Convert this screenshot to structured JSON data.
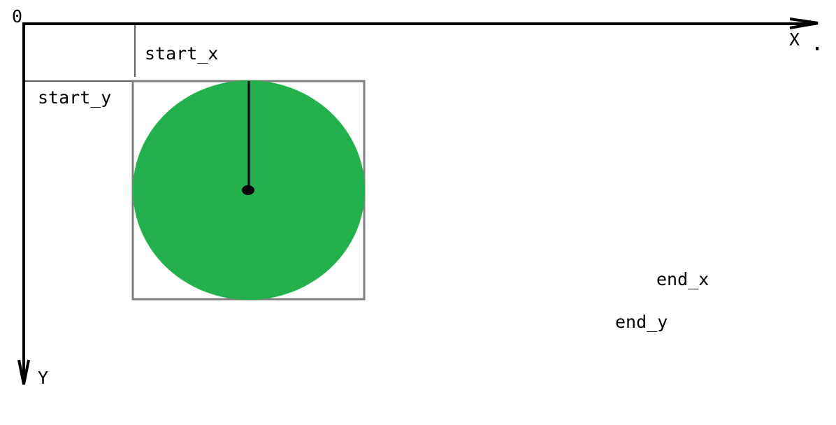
{
  "labels": {
    "origin": "0",
    "x_axis": "X",
    "y_axis": "Y",
    "start_x": "start_x",
    "start_y": "start_y",
    "end_x": "end_x",
    "end_y": "end_y",
    "stray_mark": "."
  },
  "colors": {
    "axes": "#000000",
    "circle_fill": "#23b14d",
    "bounding_box": "#7f7f7f",
    "guide_lines": "#000000"
  },
  "icons": {
    "x_axis_arrow": "arrow-right-icon",
    "y_axis_arrow": "arrow-down-icon",
    "center_point": "dot-icon"
  }
}
